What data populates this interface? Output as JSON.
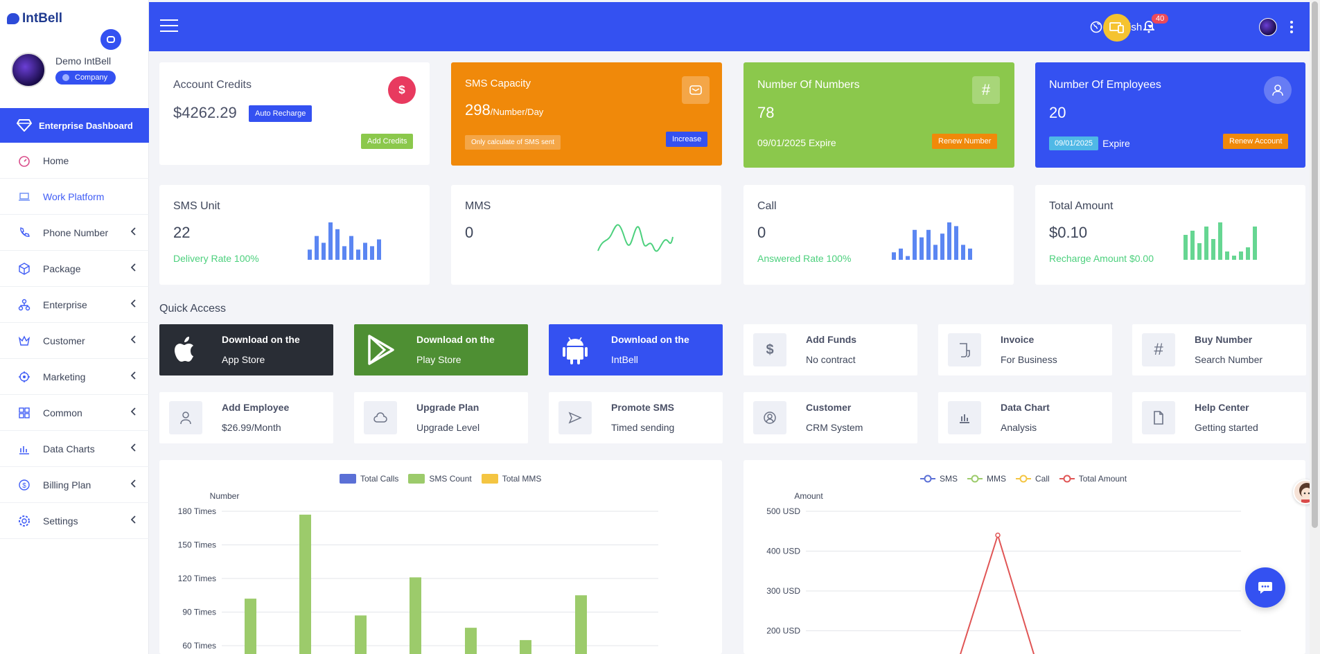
{
  "app": {
    "name": "IntBell"
  },
  "user": {
    "name": "Demo IntBell",
    "role": "Company"
  },
  "sidebar": {
    "active": "Enterprise Dashboard",
    "items": [
      {
        "label": "Home",
        "icon": "dashboard-icon",
        "expandable": false
      },
      {
        "label": "Work Platform",
        "icon": "laptop-icon",
        "expandable": false
      },
      {
        "label": "Phone Number",
        "icon": "phone-icon",
        "expandable": true
      },
      {
        "label": "Package",
        "icon": "box-icon",
        "expandable": true
      },
      {
        "label": "Enterprise",
        "icon": "org-icon",
        "expandable": true
      },
      {
        "label": "Customer",
        "icon": "crown-icon",
        "expandable": true
      },
      {
        "label": "Marketing",
        "icon": "target-icon",
        "expandable": true
      },
      {
        "label": "Common",
        "icon": "grid-icon",
        "expandable": true
      },
      {
        "label": "Data Charts",
        "icon": "bar-chart-icon",
        "expandable": true
      },
      {
        "label": "Billing Plan",
        "icon": "dollar-circle-icon",
        "expandable": true
      },
      {
        "label": "Settings",
        "icon": "gear-icon",
        "expandable": true
      }
    ]
  },
  "header": {
    "language": "English",
    "notification_count": "40"
  },
  "cards": {
    "credits": {
      "title": "Account Credits",
      "value": "$4262.29",
      "auto_btn": "Auto Recharge",
      "add_btn": "Add Credits"
    },
    "sms": {
      "title": "SMS Capacity",
      "value": "298",
      "unit": "/Number/Day",
      "note": "Only calculate of SMS sent",
      "btn": "Increase"
    },
    "numbers": {
      "title": "Number Of Numbers",
      "value": "78",
      "expire": "09/01/2025 Expire",
      "btn": "Renew Number"
    },
    "employees": {
      "title": "Number Of Employees",
      "value": "20",
      "date": "09/01/2025",
      "expire": "Expire",
      "btn": "Renew Account"
    }
  },
  "stats": {
    "sms_unit": {
      "title": "SMS Unit",
      "value": "22",
      "sub": "Delivery Rate 100%"
    },
    "mms": {
      "title": "MMS",
      "value": "0"
    },
    "call": {
      "title": "Call",
      "value": "0",
      "sub": "Answered Rate 100%"
    },
    "total": {
      "title": "Total Amount",
      "value": "$0.10",
      "sub": "Recharge Amount $0.00"
    }
  },
  "quick_access": {
    "title": "Quick Access",
    "items": [
      {
        "l1": "Download on the",
        "l2": "App Store",
        "icon": "apple-icon"
      },
      {
        "l1": "Download on the",
        "l2": "Play Store",
        "icon": "play-store-icon"
      },
      {
        "l1": "Download on the",
        "l2": "IntBell",
        "icon": "android-icon"
      },
      {
        "l1": "Add Funds",
        "l2": "No contract",
        "icon": "dollar-icon"
      },
      {
        "l1": "Invoice",
        "l2": "For Business",
        "icon": "invoice-icon"
      },
      {
        "l1": "Buy Number",
        "l2": "Search Number",
        "icon": "hash-icon"
      },
      {
        "l1": "Add Employee",
        "l2": "$26.99/Month",
        "icon": "user-icon"
      },
      {
        "l1": "Upgrade Plan",
        "l2": "Upgrade Level",
        "icon": "cloud-icon"
      },
      {
        "l1": "Promote SMS",
        "l2": "Timed sending",
        "icon": "send-icon"
      },
      {
        "l1": "Customer",
        "l2": "CRM System",
        "icon": "user-circle-icon"
      },
      {
        "l1": "Data Chart",
        "l2": "Analysis",
        "icon": "bar-chart-icon"
      },
      {
        "l1": "Help Center",
        "l2": "Getting started",
        "icon": "file-icon"
      }
    ]
  },
  "chart_data": [
    {
      "type": "bar",
      "title": "",
      "ylabel": "Number",
      "legend": [
        "Total Calls",
        "SMS Count",
        "Total MMS"
      ],
      "colors": [
        "#5b70d6",
        "#9ccb6b",
        "#f4c542"
      ],
      "y_ticks": [
        "180 Times",
        "150 Times",
        "120 Times",
        "90 Times",
        "60 Times"
      ],
      "ylim": [
        60,
        180
      ],
      "series": [
        {
          "name": "SMS Count",
          "values": [
            102,
            177,
            87,
            121,
            76,
            65,
            105
          ]
        }
      ]
    },
    {
      "type": "line",
      "title": "",
      "ylabel": "Amount",
      "legend": [
        "SMS",
        "MMS",
        "Call",
        "Total Amount"
      ],
      "colors": [
        "#5b70d6",
        "#9ccb6b",
        "#f4c542",
        "#e05555"
      ],
      "y_ticks": [
        "500 USD",
        "400 USD",
        "300 USD",
        "200 USD"
      ],
      "ylim": [
        200,
        500
      ],
      "series": [
        {
          "name": "Total Amount",
          "values": [
            null,
            null,
            null,
            440,
            null
          ]
        }
      ]
    }
  ],
  "sparklines": {
    "sms_unit": [
      3,
      7,
      5,
      11,
      9,
      4,
      7,
      3,
      5,
      4,
      6
    ],
    "call": [
      2,
      3,
      1,
      8,
      6,
      8,
      4,
      7,
      10,
      9,
      4,
      3
    ],
    "total": [
      6,
      7,
      4,
      8,
      5,
      9,
      2,
      1,
      2,
      3,
      8
    ]
  }
}
